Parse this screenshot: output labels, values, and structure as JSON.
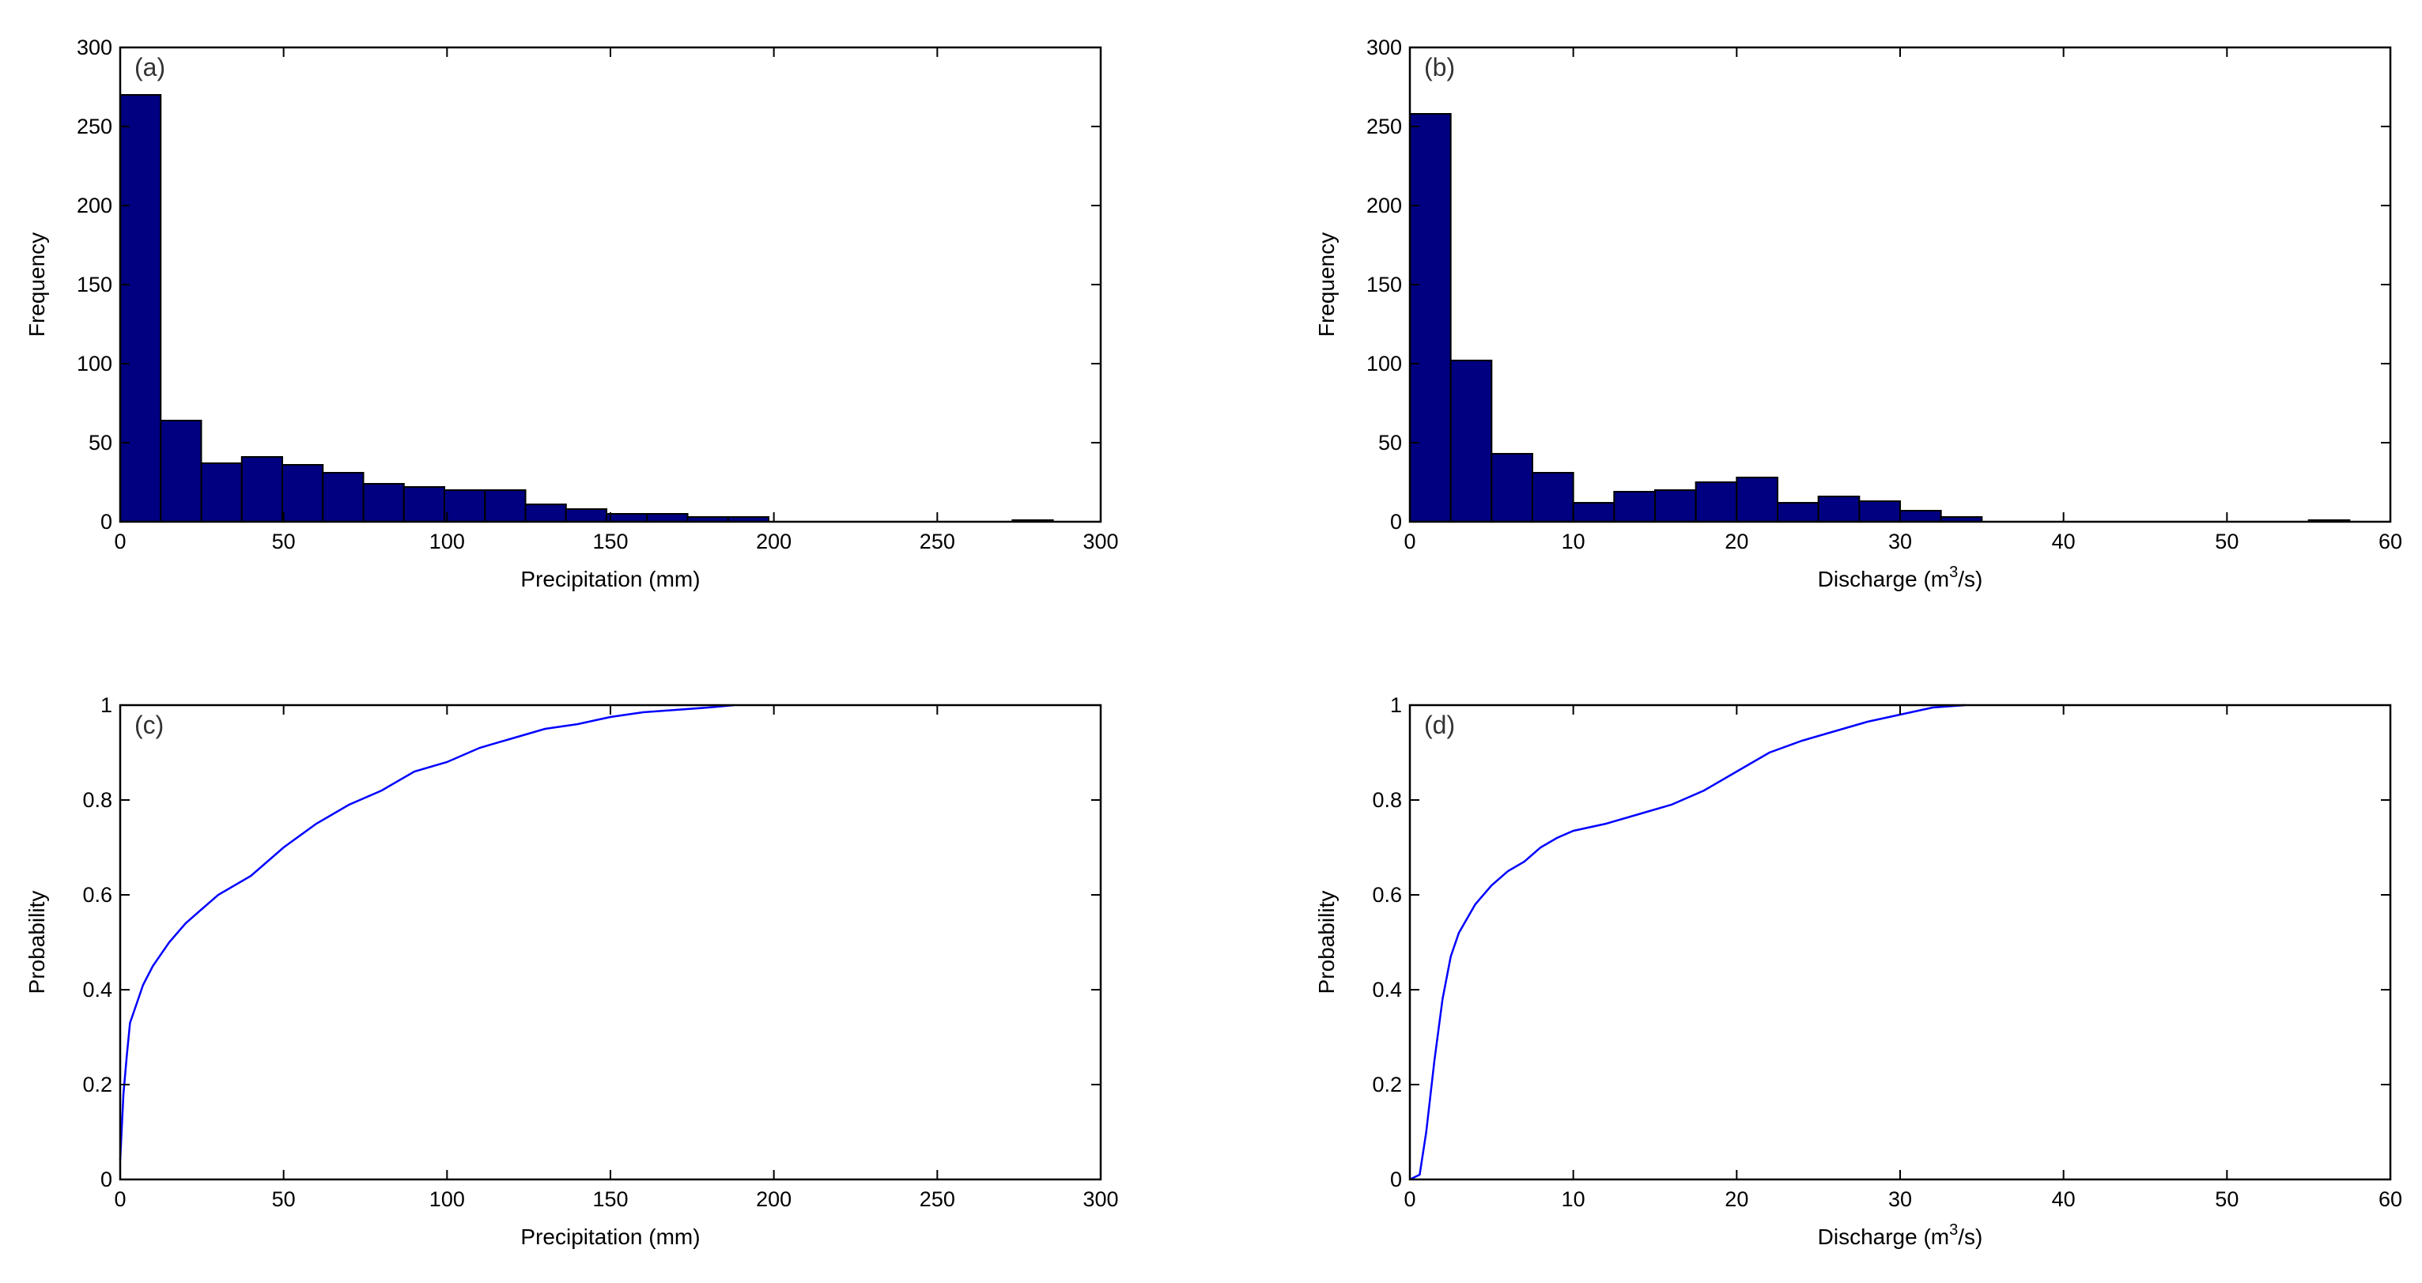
{
  "colors": {
    "bar_fill": "#000080",
    "bar_edge": "#000000",
    "cdf_line": "#0000ff",
    "axis": "#000000",
    "background": "#ffffff"
  },
  "chart_data": [
    {
      "id": "a",
      "type": "bar",
      "panel_label": "(a)",
      "xlabel": "Precipitation (mm)",
      "ylabel": "Frequency",
      "xlim": [
        0,
        300
      ],
      "ylim": [
        0,
        300
      ],
      "xticks": [
        "0",
        "50",
        "100",
        "150",
        "200",
        "250",
        "300"
      ],
      "yticks": [
        "0",
        "50",
        "100",
        "150",
        "200",
        "250",
        "300"
      ],
      "bins": [
        {
          "x0": 0,
          "x1": 12.4,
          "count": 270
        },
        {
          "x0": 12.4,
          "x1": 24.8,
          "count": 64
        },
        {
          "x0": 24.8,
          "x1": 37.2,
          "count": 37
        },
        {
          "x0": 37.2,
          "x1": 49.6,
          "count": 41
        },
        {
          "x0": 49.6,
          "x1": 62.0,
          "count": 36
        },
        {
          "x0": 62.0,
          "x1": 74.4,
          "count": 31
        },
        {
          "x0": 74.4,
          "x1": 86.8,
          "count": 24
        },
        {
          "x0": 86.8,
          "x1": 99.2,
          "count": 22
        },
        {
          "x0": 99.2,
          "x1": 111.6,
          "count": 20
        },
        {
          "x0": 111.6,
          "x1": 124.0,
          "count": 20
        },
        {
          "x0": 124.0,
          "x1": 136.4,
          "count": 11
        },
        {
          "x0": 136.4,
          "x1": 148.8,
          "count": 8
        },
        {
          "x0": 148.8,
          "x1": 161.2,
          "count": 5
        },
        {
          "x0": 161.2,
          "x1": 173.6,
          "count": 5
        },
        {
          "x0": 173.6,
          "x1": 186.0,
          "count": 3
        },
        {
          "x0": 186.0,
          "x1": 198.4,
          "count": 3
        },
        {
          "x0": 273.0,
          "x1": 285.4,
          "count": 1
        }
      ]
    },
    {
      "id": "b",
      "type": "bar",
      "panel_label": "(b)",
      "xlabel_main": "Discharge (m",
      "xlabel_sup": "3",
      "xlabel_end": "/s)",
      "ylabel": "Frequency",
      "xlim": [
        0,
        60
      ],
      "ylim": [
        0,
        300
      ],
      "xticks": [
        "0",
        "10",
        "20",
        "30",
        "40",
        "50",
        "60"
      ],
      "yticks": [
        "0",
        "50",
        "100",
        "150",
        "200",
        "250",
        "300"
      ],
      "bins": [
        {
          "x0": 0,
          "x1": 2.5,
          "count": 258
        },
        {
          "x0": 2.5,
          "x1": 5.0,
          "count": 102
        },
        {
          "x0": 5.0,
          "x1": 7.5,
          "count": 43
        },
        {
          "x0": 7.5,
          "x1": 10.0,
          "count": 31
        },
        {
          "x0": 10.0,
          "x1": 12.5,
          "count": 12
        },
        {
          "x0": 12.5,
          "x1": 15.0,
          "count": 19
        },
        {
          "x0": 15.0,
          "x1": 17.5,
          "count": 20
        },
        {
          "x0": 17.5,
          "x1": 20.0,
          "count": 25
        },
        {
          "x0": 20.0,
          "x1": 22.5,
          "count": 28
        },
        {
          "x0": 22.5,
          "x1": 25.0,
          "count": 12
        },
        {
          "x0": 25.0,
          "x1": 27.5,
          "count": 16
        },
        {
          "x0": 27.5,
          "x1": 30.0,
          "count": 13
        },
        {
          "x0": 30.0,
          "x1": 32.5,
          "count": 7
        },
        {
          "x0": 32.5,
          "x1": 35.0,
          "count": 3
        },
        {
          "x0": 55.0,
          "x1": 57.5,
          "count": 1
        }
      ]
    },
    {
      "id": "c",
      "type": "line",
      "panel_label": "(c)",
      "xlabel": "Precipitation (mm)",
      "ylabel": "Probability",
      "xlim": [
        0,
        300
      ],
      "ylim": [
        0,
        1
      ],
      "xticks": [
        "0",
        "50",
        "100",
        "150",
        "200",
        "250",
        "300"
      ],
      "yticks": [
        "0",
        "0.2",
        "0.4",
        "0.6",
        "0.8",
        "1"
      ],
      "x": [
        0,
        1,
        2,
        3,
        5,
        7,
        10,
        15,
        20,
        25,
        30,
        40,
        50,
        60,
        70,
        80,
        90,
        100,
        110,
        120,
        130,
        140,
        150,
        160,
        170,
        180,
        188
      ],
      "y": [
        0.04,
        0.18,
        0.26,
        0.33,
        0.37,
        0.41,
        0.45,
        0.5,
        0.54,
        0.57,
        0.6,
        0.64,
        0.7,
        0.75,
        0.79,
        0.82,
        0.86,
        0.88,
        0.91,
        0.93,
        0.95,
        0.96,
        0.975,
        0.985,
        0.99,
        0.995,
        1.0
      ]
    },
    {
      "id": "d",
      "type": "line",
      "panel_label": "(d)",
      "xlabel_main": "Discharge (m",
      "xlabel_sup": "3",
      "xlabel_end": "/s)",
      "ylabel": "Probability",
      "xlim": [
        0,
        60
      ],
      "ylim": [
        0,
        1
      ],
      "xticks": [
        "0",
        "10",
        "20",
        "30",
        "40",
        "50",
        "60"
      ],
      "yticks": [
        "0",
        "0.2",
        "0.4",
        "0.6",
        "0.8",
        "1"
      ],
      "x": [
        0,
        0.3,
        0.6,
        1.0,
        1.5,
        2.0,
        2.5,
        3.0,
        4.0,
        5.0,
        6.0,
        7.0,
        8.0,
        9.0,
        10.0,
        12.0,
        14.0,
        16.0,
        18.0,
        20.0,
        22.0,
        24.0,
        26.0,
        28.0,
        30.0,
        32.0,
        34.0
      ],
      "y": [
        0.0,
        0.005,
        0.01,
        0.1,
        0.25,
        0.38,
        0.47,
        0.52,
        0.58,
        0.62,
        0.65,
        0.67,
        0.7,
        0.72,
        0.735,
        0.75,
        0.77,
        0.79,
        0.82,
        0.86,
        0.9,
        0.925,
        0.945,
        0.965,
        0.98,
        0.995,
        1.0
      ]
    }
  ]
}
